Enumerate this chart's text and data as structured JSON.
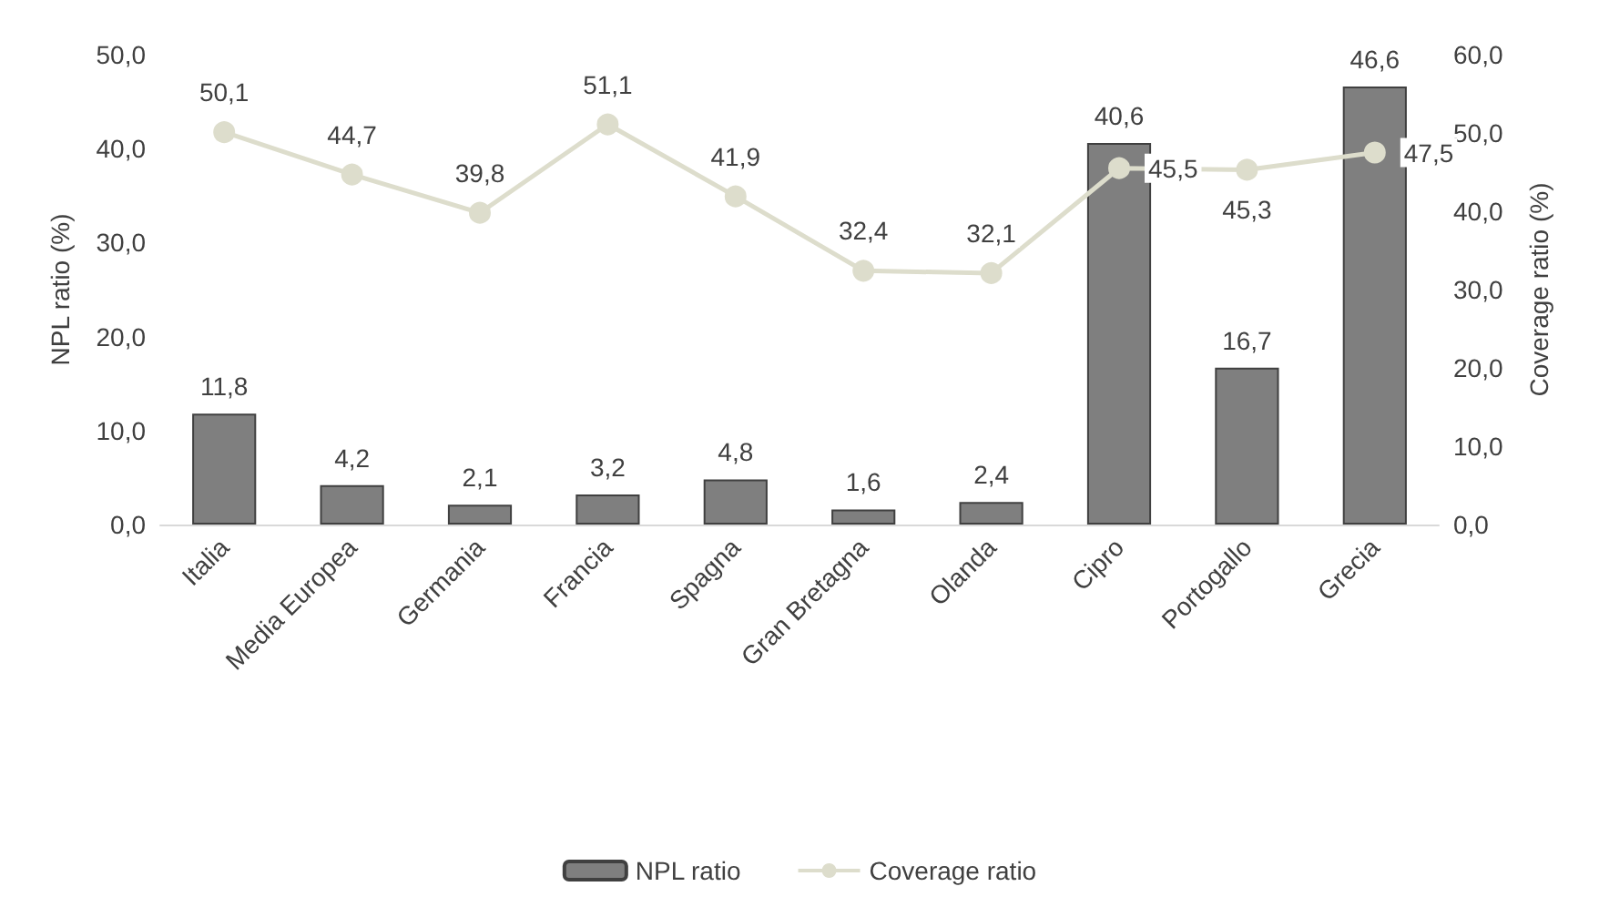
{
  "chart_data": {
    "type": "bar",
    "ylabel": "NPL ratio (%)",
    "y2label": "Coverage ratio (%)",
    "categories": [
      "Italia",
      "Media Europea",
      "Germania",
      "Francia",
      "Spagna",
      "Gran Bretagna",
      "Olanda",
      "Cipro",
      "Portogallo",
      "Grecia"
    ],
    "series": [
      {
        "name": "NPL ratio",
        "color": "#7f7f7f",
        "values": [
          11.8,
          4.2,
          2.1,
          3.2,
          4.8,
          1.6,
          2.4,
          40.6,
          16.7,
          46.6
        ],
        "value_labels": [
          "11,8",
          "4,2",
          "2,1",
          "3,2",
          "4,8",
          "1,6",
          "2,4",
          "40,6",
          "16,7",
          "46,6"
        ]
      },
      {
        "name": "Coverage ratio",
        "type": "line",
        "axis": "y2",
        "color": "#ddddcc",
        "marker": "circle",
        "values": [
          50.1,
          44.7,
          39.8,
          51.1,
          41.9,
          32.4,
          32.1,
          45.5,
          45.3,
          47.5
        ],
        "value_labels": [
          "50,1",
          "44,7",
          "39,8",
          "51,1",
          "41,9",
          "32,4",
          "32,1",
          "45,5",
          "45,3",
          "47,5"
        ]
      }
    ],
    "ylim": [
      0,
      50
    ],
    "yticks": [
      {
        "value": 0,
        "label": "0,0"
      },
      {
        "value": 10,
        "label": "10,0"
      },
      {
        "value": 20,
        "label": "20,0"
      },
      {
        "value": 30,
        "label": "30,0"
      },
      {
        "value": 40,
        "label": "40,0"
      },
      {
        "value": 50,
        "label": "50,0"
      }
    ],
    "y2lim": [
      0,
      60
    ],
    "y2ticks": [
      {
        "value": 0,
        "label": "0,0"
      },
      {
        "value": 10,
        "label": "10,0"
      },
      {
        "value": 20,
        "label": "20,0"
      },
      {
        "value": 30,
        "label": "30,0"
      },
      {
        "value": 40,
        "label": "40,0"
      },
      {
        "value": 50,
        "label": "50,0"
      },
      {
        "value": 60,
        "label": "60,0"
      }
    ],
    "grid": false,
    "legend": "bottom"
  }
}
